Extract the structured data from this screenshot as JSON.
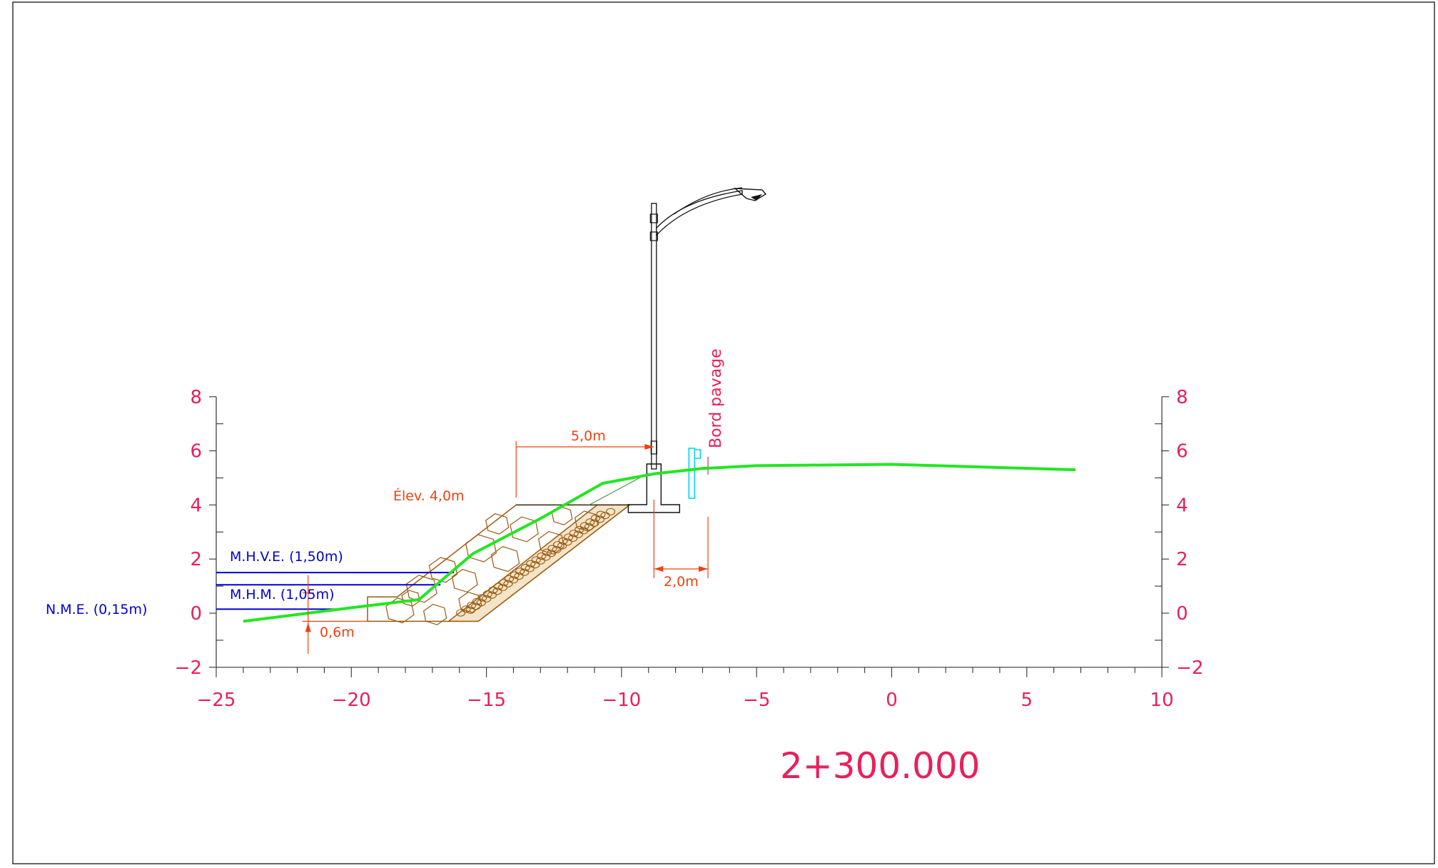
{
  "drawing": {
    "station": "2+300.000",
    "colors": {
      "axis": "#e8205a",
      "ground": "#22e622",
      "water": "#0000d0",
      "dimension": "#f04010",
      "riprap": "#9a5a10",
      "marker": "#00d8e8",
      "structure": "#111111"
    },
    "x_ticks": [
      "−25",
      "−20",
      "−15",
      "−10",
      "−5",
      "0",
      "5",
      "10"
    ],
    "y_ticks_left": [
      "8",
      "6",
      "4",
      "2",
      "0",
      "−2"
    ],
    "y_ticks_right": [
      "8",
      "6",
      "4",
      "2",
      "0",
      "−2"
    ],
    "water_levels": [
      {
        "label": "M.H.V.E.  (1,50m)",
        "elevation": 1.5
      },
      {
        "label": "M.H.M.  (1,05m)",
        "elevation": 1.05
      },
      {
        "label": "N.M.E.  (0,15m)",
        "elevation": 0.15
      }
    ],
    "dimensions": {
      "top_width": "5,0m",
      "offset": "2,0m",
      "toe_depth": "0,6m",
      "top_elevation": "Élev.  4,0m"
    },
    "pavement_edge_label": "Bord   pavage"
  },
  "chart_data": {
    "type": "line",
    "xlim": [
      -25,
      10
    ],
    "ylim": [
      -2,
      8
    ],
    "series": [
      {
        "x": [
          -24,
          -20,
          -17.5,
          -15.5,
          -13,
          -10.7,
          -8.8,
          -7,
          -5,
          0,
          6.8
        ],
        "y": [
          -0.3,
          0.2,
          0.5,
          2.2,
          3.5,
          4.8,
          5.15,
          5.35,
          5.45,
          5.5,
          5.3
        ]
      }
    ]
  }
}
